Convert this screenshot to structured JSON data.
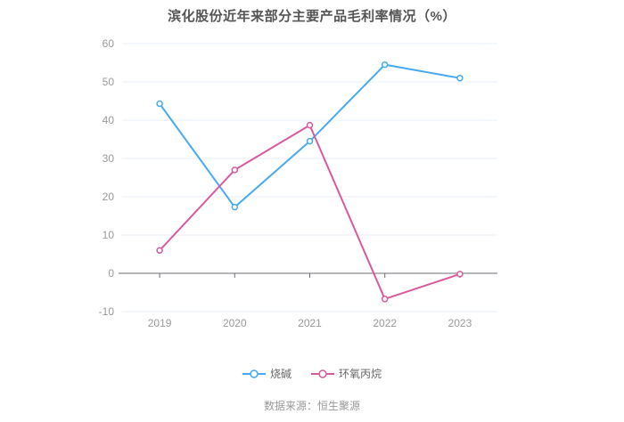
{
  "footer": {
    "text": "数据来源：恒生聚源"
  },
  "palette": {
    "title_text": "#555555",
    "tick_label": "#999999",
    "legend_text": "#666666",
    "grid_line": "#e7edf6",
    "axis_line": "#6b6e76",
    "marker_fill": "#ffffff"
  },
  "chart_data": {
    "type": "line",
    "title": "滨化股份近年来部分主要产品毛利率情况（%）",
    "categories": [
      "2019",
      "2020",
      "2021",
      "2022",
      "2023"
    ],
    "series": [
      {
        "name": "烧碱",
        "color": "#45aaf2",
        "values": [
          44.3,
          17.3,
          34.5,
          54.5,
          51.0
        ]
      },
      {
        "name": "环氧丙烷",
        "color": "#d85a9e",
        "values": [
          6.0,
          27.0,
          38.7,
          -6.7,
          -0.2
        ]
      }
    ],
    "ylim": [
      -10,
      60
    ],
    "ytick_step": 10,
    "grid": true,
    "legend_position": "bottom",
    "legend": [
      "烧碱",
      "环氧丙烷"
    ],
    "xlabel": "",
    "ylabel": ""
  }
}
